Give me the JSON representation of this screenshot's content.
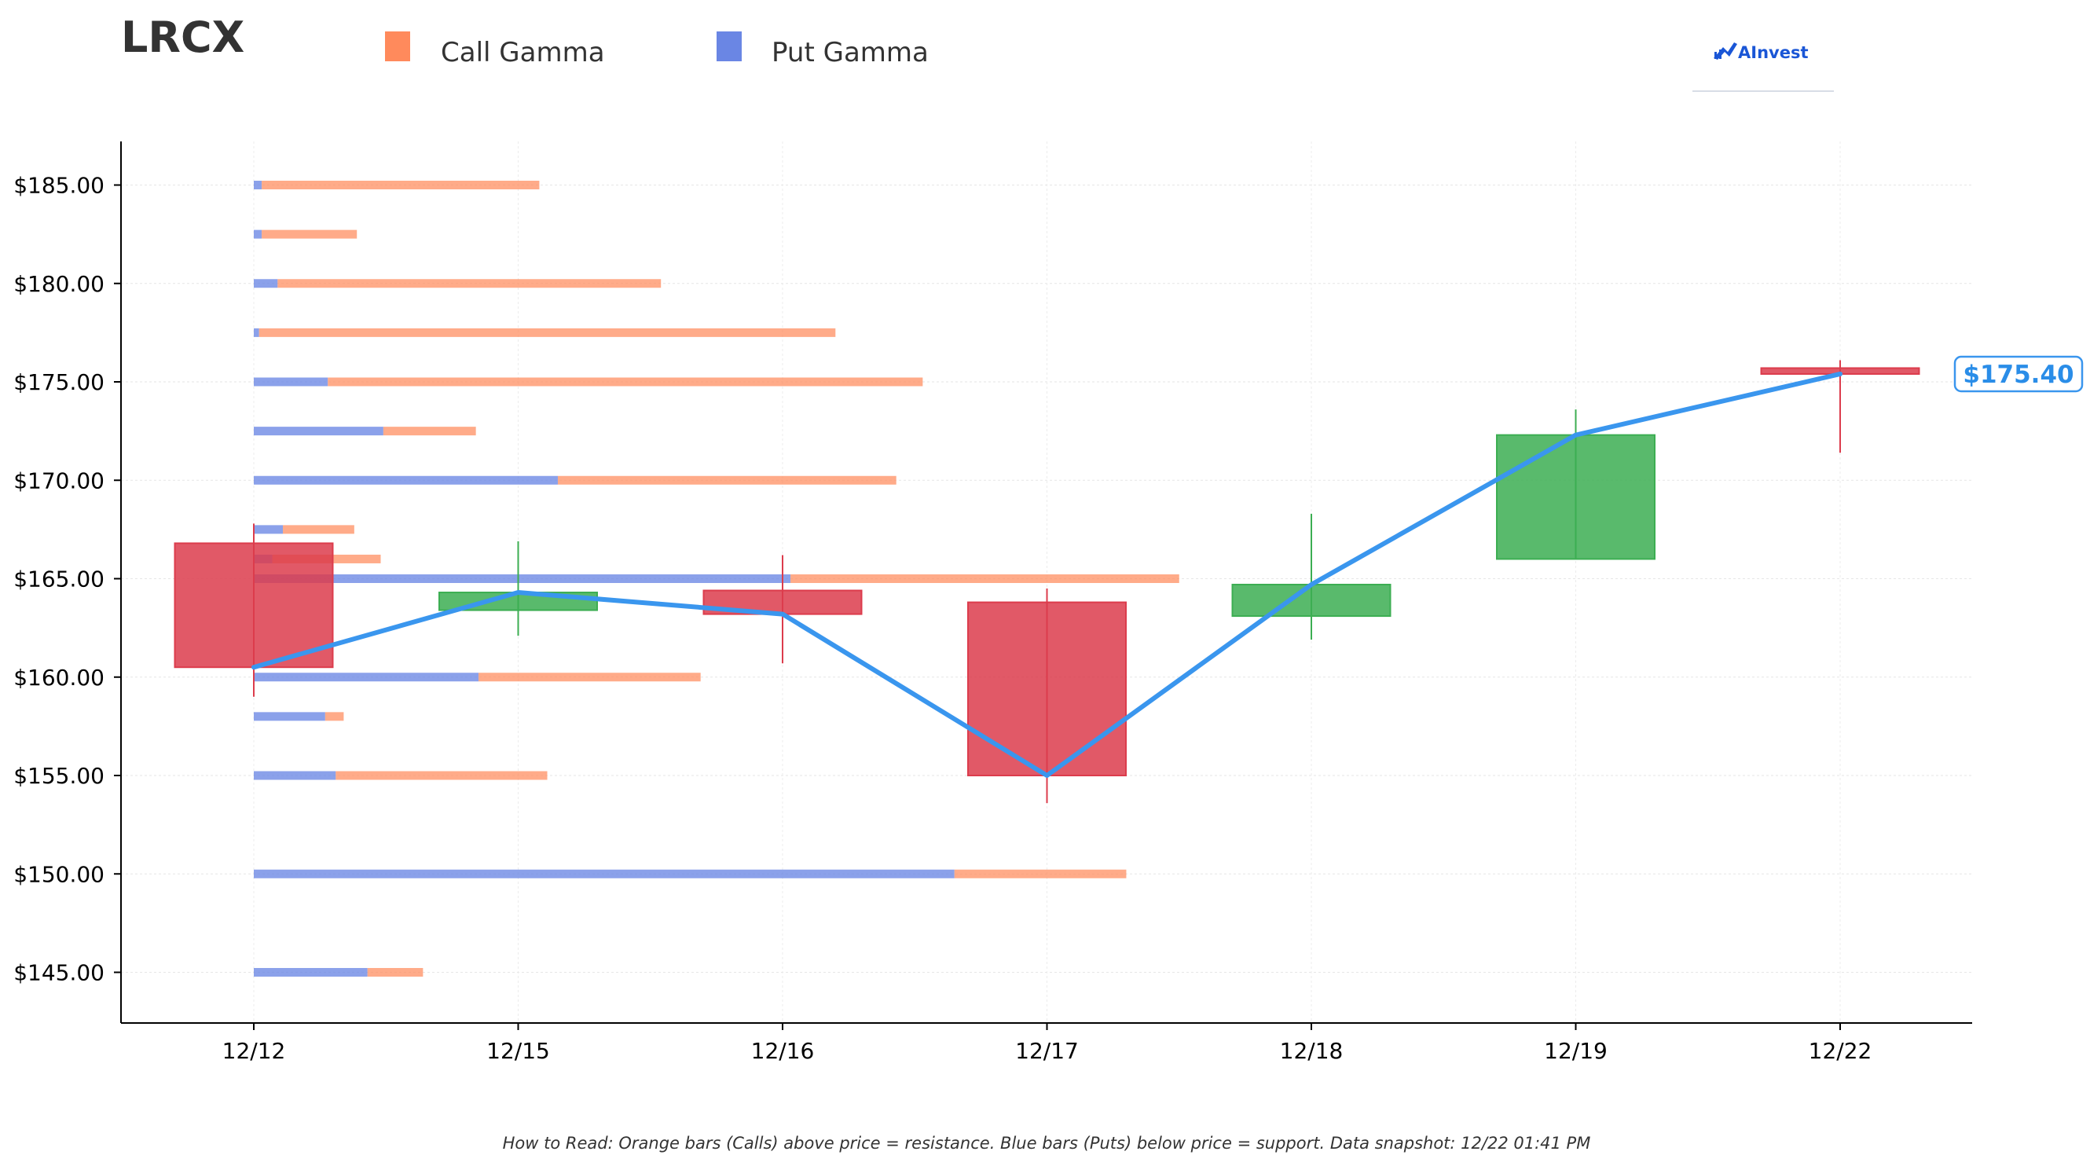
{
  "ticker": "LRCX",
  "logo_text": "AInvest",
  "footnote": "How to Read: Orange bars (Calls) above price = resistance. Blue bars (Puts) below price = support. Data snapshot: 12/22 01:41 PM",
  "current_price_label": "$175.40",
  "colors": {
    "call": "#ff8a5c",
    "put": "#6a86e4",
    "up": "#3cae52",
    "down": "#dc3c4c",
    "line": "#3a96ee"
  },
  "chart_data": {
    "type": "candlestick",
    "legend": [
      {
        "name": "Call Gamma",
        "color": "#ff8a5c"
      },
      {
        "name": "Put Gamma",
        "color": "#6a86e4"
      }
    ],
    "legend_position": "top",
    "x_categories": [
      "12/12",
      "12/15",
      "12/16",
      "12/17",
      "12/18",
      "12/19",
      "12/22"
    ],
    "ylim": [
      143,
      187
    ],
    "y_ticks": [
      145,
      150,
      155,
      160,
      165,
      170,
      175,
      180,
      185
    ],
    "y_tick_labels": [
      "$145.00",
      "$150.00",
      "$155.00",
      "$160.00",
      "$165.00",
      "$170.00",
      "$175.00",
      "$180.00",
      "$185.00"
    ],
    "grid": true,
    "candles": [
      {
        "date": "12/12",
        "open": 166.8,
        "close": 160.5,
        "high": 167.8,
        "low": 159.0
      },
      {
        "date": "12/15",
        "open": 163.4,
        "close": 164.3,
        "high": 166.9,
        "low": 162.1
      },
      {
        "date": "12/16",
        "open": 164.4,
        "close": 163.2,
        "high": 166.2,
        "low": 160.7
      },
      {
        "date": "12/17",
        "open": 163.8,
        "close": 155.0,
        "high": 164.5,
        "low": 153.6
      },
      {
        "date": "12/18",
        "open": 163.1,
        "close": 164.7,
        "high": 168.3,
        "low": 161.9
      },
      {
        "date": "12/19",
        "open": 166.0,
        "close": 172.3,
        "high": 173.6,
        "low": 166.0
      },
      {
        "date": "12/22",
        "open": 175.7,
        "close": 175.4,
        "high": 176.1,
        "low": 171.4
      }
    ],
    "close_line": [
      160.5,
      164.3,
      163.2,
      155.0,
      164.7,
      172.3,
      175.4
    ],
    "current_price": 175.4,
    "gamma_x_unit": "date-index",
    "gamma": [
      {
        "strike": 185.0,
        "put": 0.03,
        "call": 1.05
      },
      {
        "strike": 182.5,
        "put": 0.03,
        "call": 0.36
      },
      {
        "strike": 180.0,
        "put": 0.09,
        "call": 1.45
      },
      {
        "strike": 177.5,
        "put": 0.02,
        "call": 2.18
      },
      {
        "strike": 175.0,
        "put": 0.28,
        "call": 2.25
      },
      {
        "strike": 172.5,
        "put": 0.49,
        "call": 0.35
      },
      {
        "strike": 170.0,
        "put": 1.15,
        "call": 1.28
      },
      {
        "strike": 167.5,
        "put": 0.11,
        "call": 0.27
      },
      {
        "strike": 166.0,
        "put": 0.07,
        "call": 0.41
      },
      {
        "strike": 165.0,
        "put": 2.03,
        "call": 1.47
      },
      {
        "strike": 160.0,
        "put": 0.85,
        "call": 0.84
      },
      {
        "strike": 158.0,
        "put": 0.27,
        "call": 0.07
      },
      {
        "strike": 155.0,
        "put": 0.31,
        "call": 0.8
      },
      {
        "strike": 150.0,
        "put": 2.65,
        "call": 0.65
      },
      {
        "strike": 145.0,
        "put": 0.43,
        "call": 0.21
      }
    ]
  }
}
